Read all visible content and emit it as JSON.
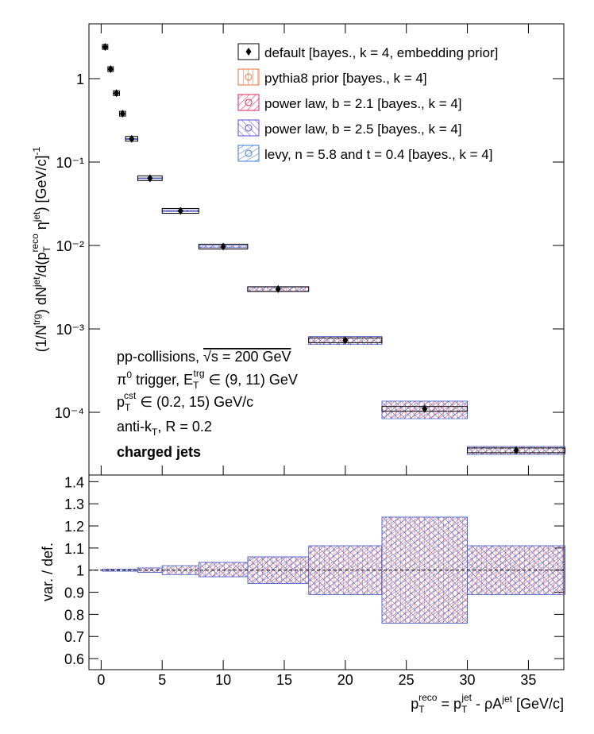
{
  "chart_data": {
    "type": "ratio-histogram",
    "y_label": [
      "(1/N",
      "trg",
      ") dN",
      "jet",
      "/d(p",
      "T",
      "reco",
      " η",
      "jet",
      ") [GeV/c]",
      "-1"
    ],
    "ratio_label": "var. / def.",
    "x_label": [
      "p",
      "T",
      "reco",
      " = p",
      "T",
      "jet",
      " - ρA",
      "jet",
      " [GeV/c]"
    ],
    "bins": [
      0.1,
      0.55,
      1,
      1.5,
      2,
      3,
      5,
      8,
      12,
      17,
      23,
      30,
      38
    ],
    "series": [
      {
        "name": "default [bayes., k = 4, embedding prior]",
        "color": "#000000",
        "values": [
          2.4,
          1.3,
          0.67,
          0.38,
          0.19,
          0.064,
          0.026,
          0.0097,
          0.003,
          0.00073,
          0.00011,
          3.5e-05
        ]
      },
      {
        "name": "pythia8 prior [bayes., k = 4]",
        "color": "#e8743b"
      },
      {
        "name": "power law, b = 2.1 [bayes., k = 4]",
        "color": "#e0205a"
      },
      {
        "name": "power law, b = 2.5 [bayes., k = 4]",
        "color": "#5a48e0"
      },
      {
        "name": "levy, n = 5.8 and t = 0.4 [bayes., k = 4]",
        "color": "#3a78d8"
      }
    ],
    "ratio_low": [
      0.995,
      0.995,
      0.995,
      0.995,
      0.995,
      0.99,
      0.98,
      0.97,
      0.94,
      0.89,
      0.76,
      0.89
    ],
    "ratio_high": [
      1.005,
      1.005,
      1.005,
      1.005,
      1.005,
      1.01,
      1.02,
      1.035,
      1.06,
      1.11,
      1.24,
      1.11
    ],
    "annotations": [
      [
        "pp-collisions, ",
        "√s = 200 GeV"
      ],
      [
        "π",
        "0",
        " trigger, E",
        "T",
        "trg",
        " ∈ (9, 11) GeV"
      ],
      [
        "p",
        "T",
        "cst",
        " ∈ (0.2, 15) GeV/c"
      ],
      [
        "anti-k",
        "T",
        ", R = 0.2"
      ],
      [
        "charged jets"
      ]
    ],
    "xlim": [
      -1,
      37.9
    ],
    "xticks": [
      0,
      5,
      10,
      15,
      20,
      25,
      30,
      35
    ],
    "ylim": [
      1.77e-05,
      4.54
    ],
    "log_y": true,
    "yticks": [
      {
        "value": 0.0001,
        "label": "10⁻⁴"
      },
      {
        "value": 0.001,
        "label": "10⁻³"
      },
      {
        "value": 0.01,
        "label": "10⁻²"
      },
      {
        "value": 0.1,
        "label": "10⁻¹"
      },
      1
    ],
    "ratio_ylim": [
      0.55,
      1.43
    ],
    "ratio_yticks": [
      0.6,
      0.7,
      0.8,
      0.9,
      1,
      1.1,
      1.2,
      1.3,
      1.4
    ]
  }
}
